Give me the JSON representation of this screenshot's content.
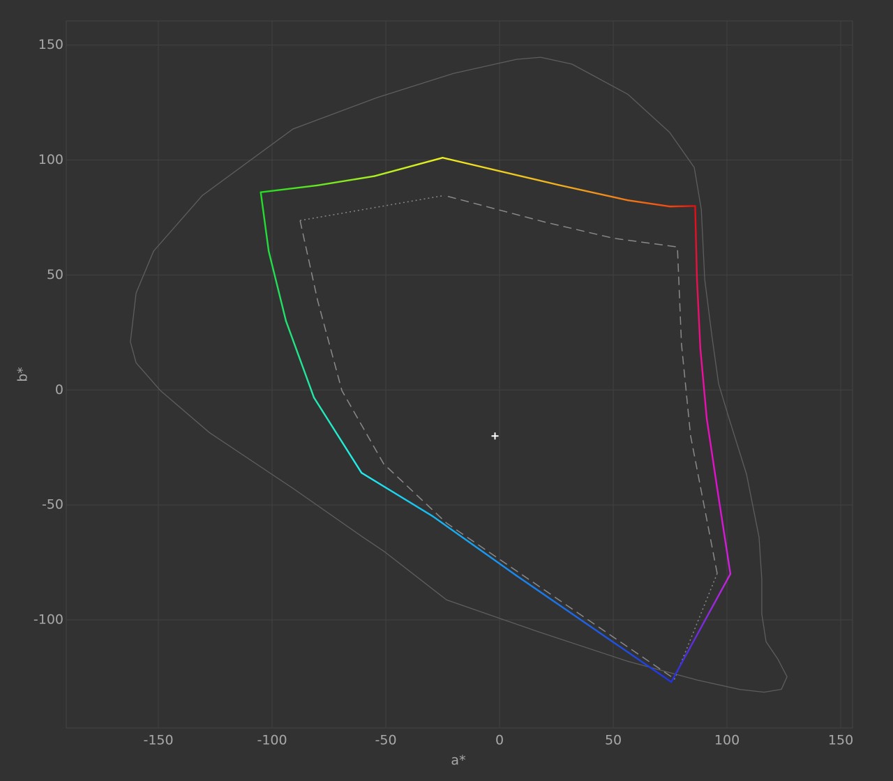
{
  "chart_data": {
    "type": "line",
    "xlabel": "a*",
    "ylabel": "b*",
    "xlim": [
      -190.5,
      155.2
    ],
    "ylim": [
      -147,
      160.5
    ],
    "xticks": [
      -150,
      -100,
      -50,
      0,
      50,
      100,
      150
    ],
    "yticks": [
      -100,
      -50,
      0,
      50,
      100,
      150
    ],
    "grid": true,
    "series": [
      {
        "style": "solid",
        "color": "#5e5e5e",
        "x": [
          -162.3,
          -159.8,
          -152.1,
          -130.7,
          -90.8,
          -54.0,
          -20.2,
          7.4,
          18.1,
          31.9,
          56.4,
          74.8,
          85.6,
          88.7,
          90.2,
          93.3,
          96.3,
          100.9,
          108.6,
          114.1,
          115.3,
          115.3,
          117.2,
          122.4,
          126.4,
          123.9,
          116.3,
          105.5,
          87.1,
          56.4,
          16.6,
          -23.3,
          -50.9,
          -60.1,
          -90.8,
          -127.6,
          -149.1,
          -159.8,
          -162.3
        ],
        "y": [
          20.9,
          42.2,
          60.4,
          84.6,
          113.5,
          127.1,
          137.7,
          143.8,
          144.7,
          141.7,
          128.6,
          112.0,
          96.8,
          78.6,
          48.2,
          24.0,
          2.7,
          -12.4,
          -36.7,
          -64.0,
          -82.2,
          -97.4,
          -109.5,
          -117.1,
          -124.7,
          -130.2,
          -131.4,
          -130.2,
          -126.2,
          -118.0,
          -105.0,
          -91.3,
          -70.1,
          -64.0,
          -42.8,
          -18.5,
          -0.3,
          11.8,
          20.9
        ]
      },
      {
        "style": "dashed",
        "color": "#8a8a8a",
        "x": [
          -87.7,
          -80,
          -69.3,
          -50.9,
          -23.3,
          76.4,
          null,
          95.7,
          84,
          80,
          78.2,
          50,
          20,
          -24.2
        ],
        "y": [
          73.7,
          39,
          -0.3,
          -32.2,
          -57.9,
          -125.3,
          null,
          -79.8,
          -20,
          20,
          62.2,
          66,
          73,
          84.6
        ]
      },
      {
        "style": "dotted",
        "color": "#8a8a8a",
        "x": [
          -87.7,
          -24.2,
          null,
          95.7,
          76.4
        ],
        "y": [
          73.7,
          84.6,
          null,
          -79.8,
          -127
        ]
      },
      {
        "style": "gradient",
        "x": [
          -105,
          -80,
          -55,
          -25,
          25.8,
          56.4,
          74.8,
          86,
          86.8,
          88.3,
          91.1,
          95.7,
          101.5,
          75.5,
          7.4,
          -29.4,
          -60.7,
          -81.6,
          -93.9,
          -101.5,
          -105
        ],
        "y": [
          86,
          89,
          93,
          101,
          89.2,
          82.5,
          79.8,
          80,
          48.2,
          17.9,
          -12.4,
          -42.8,
          -80,
          -127,
          -80.7,
          -54.9,
          -36,
          -3.3,
          30,
          60.4,
          86
        ],
        "colors": [
          "#22dd22",
          "#66e622",
          "#aaee22",
          "#eeee22",
          "#f0b020",
          "#f07a18",
          "#ee4a10",
          "#e01010",
          "#e8104a",
          "#ee1090",
          "#e810b8",
          "#e010d0",
          "#cc22dd",
          "#2233dd",
          "#1a88ee",
          "#18b8f0",
          "#22eeee",
          "#22e8b0",
          "#22e070",
          "#22dd40",
          "#22dd22"
        ]
      },
      {
        "style": "marker",
        "color": "#ffffff",
        "x": [
          -2
        ],
        "y": [
          -20
        ]
      }
    ]
  }
}
